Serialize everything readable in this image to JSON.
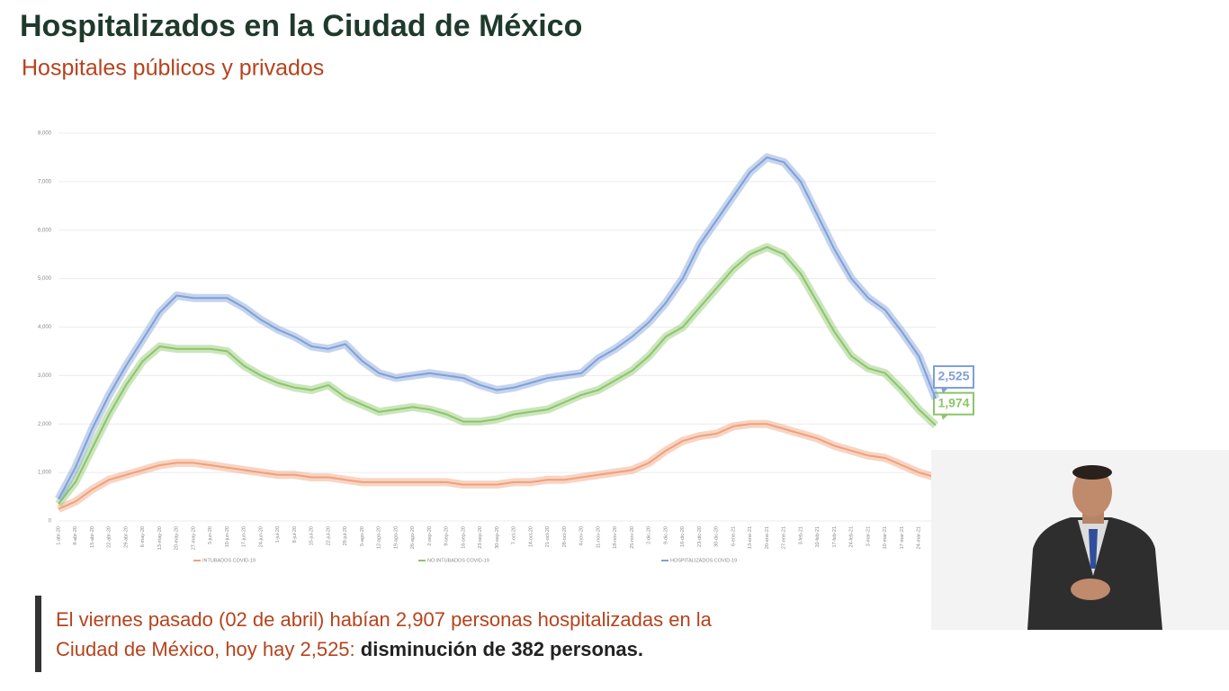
{
  "header": {
    "title": "Hospitalizados en la Ciudad de México",
    "subtitle": "Hospitales públicos y privados"
  },
  "chart_data": {
    "type": "line",
    "categories": [
      "1-abr-20",
      "8-abr-20",
      "15-abr-20",
      "22-abr-20",
      "29-abr-20",
      "6-may-20",
      "13-may-20",
      "20-may-20",
      "27-may-20",
      "3-jun-20",
      "10-jun-20",
      "17-jun-20",
      "24-jun-20",
      "1-jul-20",
      "8-jul-20",
      "15-jul-20",
      "22-jul-20",
      "29-jul-20",
      "5-ago-20",
      "12-ago-20",
      "19-ago-20",
      "26-ago-20",
      "2-sep-20",
      "9-sep-20",
      "16-sep-20",
      "23-sep-20",
      "30-sep-20",
      "7-oct-20",
      "14-oct-20",
      "21-oct-20",
      "28-oct-20",
      "4-nov-20",
      "11-nov-20",
      "18-nov-20",
      "25-nov-20",
      "2-dic-20",
      "9-dic-20",
      "16-dic-20",
      "23-dic-20",
      "30-dic-20",
      "6-ene-21",
      "13-ene-21",
      "20-ene-21",
      "27-ene-21",
      "3-feb-21",
      "10-feb-21",
      "17-feb-21",
      "24-feb-21",
      "3-mar-21",
      "10-mar-21",
      "17-mar-21",
      "24-mar-21",
      "31-mar-21"
    ],
    "series": [
      {
        "name": "INTUBADOS COVID-19",
        "color": "#f0a07a",
        "values": [
          250,
          400,
          650,
          850,
          950,
          1050,
          1150,
          1200,
          1200,
          1150,
          1100,
          1050,
          1000,
          950,
          950,
          900,
          900,
          850,
          800,
          800,
          800,
          800,
          800,
          800,
          750,
          750,
          750,
          800,
          800,
          850,
          850,
          900,
          950,
          1000,
          1050,
          1200,
          1450,
          1650,
          1750,
          1800,
          1950,
          2000,
          2000,
          1900,
          1800,
          1700,
          1550,
          1450,
          1350,
          1300,
          1150,
          1000,
          900
        ]
      },
      {
        "name": "NO INTUBADOS COVID-19",
        "color": "#8cc56a",
        "values": [
          350,
          800,
          1500,
          2200,
          2800,
          3300,
          3600,
          3550,
          3550,
          3550,
          3500,
          3200,
          3000,
          2850,
          2750,
          2700,
          2800,
          2550,
          2400,
          2250,
          2300,
          2350,
          2300,
          2200,
          2050,
          2050,
          2100,
          2200,
          2250,
          2300,
          2450,
          2600,
          2700,
          2900,
          3100,
          3400,
          3800,
          4000,
          4400,
          4800,
          5200,
          5500,
          5650,
          5500,
          5100,
          4500,
          3900,
          3400,
          3150,
          3050,
          2700,
          2300,
          1974
        ],
        "value_labels": [
          null,
          null,
          null,
          null,
          null,
          null,
          null,
          null,
          null,
          null,
          null,
          null,
          null,
          null,
          null,
          null,
          null,
          null,
          null,
          null,
          null,
          null,
          null,
          null,
          null,
          null,
          null,
          null,
          null,
          null,
          null,
          null,
          null,
          null,
          null,
          null,
          null,
          null,
          null,
          null,
          null,
          null,
          null,
          null,
          null,
          null,
          null,
          null,
          null,
          null,
          null,
          null,
          "1,974"
        ]
      },
      {
        "name": "HOSPITALIZADOS COVID-19",
        "color": "#7f9fd8",
        "values": [
          450,
          1100,
          1900,
          2600,
          3200,
          3750,
          4300,
          4650,
          4600,
          4600,
          4600,
          4400,
          4150,
          3950,
          3800,
          3600,
          3550,
          3650,
          3300,
          3050,
          2950,
          3000,
          3050,
          3000,
          2950,
          2800,
          2700,
          2750,
          2850,
          2950,
          3000,
          3050,
          3350,
          3550,
          3800,
          4100,
          4500,
          5000,
          5700,
          6200,
          6700,
          7200,
          7500,
          7400,
          7000,
          6300,
          5600,
          5000,
          4600,
          4350,
          3900,
          3400,
          2525
        ],
        "value_labels": [
          null,
          null,
          null,
          null,
          null,
          null,
          null,
          null,
          null,
          null,
          null,
          null,
          null,
          null,
          null,
          null,
          null,
          null,
          null,
          null,
          null,
          null,
          null,
          null,
          null,
          null,
          null,
          null,
          null,
          null,
          null,
          null,
          null,
          null,
          null,
          null,
          null,
          null,
          null,
          null,
          null,
          null,
          null,
          null,
          null,
          null,
          null,
          null,
          null,
          null,
          null,
          null,
          "2,525"
        ]
      }
    ],
    "ylim": [
      0,
      8000
    ],
    "yticks": [
      0,
      {
        "value": 1000,
        "label": "1,000"
      },
      {
        "value": 2000,
        "label": "2,000"
      },
      {
        "value": 3000,
        "label": "3,000"
      },
      {
        "value": 4000,
        "label": "4,000"
      },
      {
        "value": 5000,
        "label": "5,000"
      },
      {
        "value": 6000,
        "label": "6,000"
      },
      {
        "value": 7000,
        "label": "7,000"
      },
      {
        "value": 8000,
        "label": "8,000"
      }
    ],
    "grid": true,
    "legend": "bottom"
  },
  "caption": {
    "line1": "El viernes pasado (02 de abril) habían 2,907 personas hospitalizadas en la",
    "line2": "Ciudad de México, hoy hay 2,525: ",
    "emphasis": "disminución de 382 personas."
  }
}
